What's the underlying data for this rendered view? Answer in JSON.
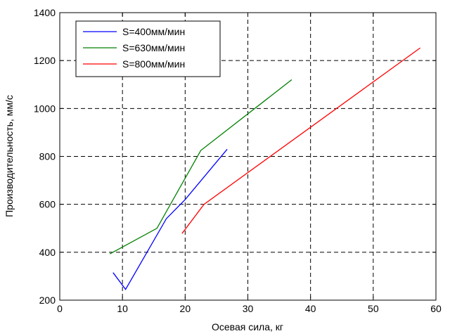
{
  "chart_data": {
    "type": "line",
    "xlabel": "Осевая сила, кг",
    "ylabel": "Производительность, мм/с",
    "xlim": [
      0,
      60
    ],
    "ylim": [
      200,
      1400
    ],
    "xticks": [
      0,
      10,
      20,
      30,
      40,
      50,
      60
    ],
    "yticks": [
      200,
      400,
      600,
      800,
      1000,
      1200,
      1400
    ],
    "grid": true,
    "legend_position": "top-left",
    "series": [
      {
        "name": "S=400мм/мин",
        "color": "#0000ff",
        "x": [
          8.5,
          10.5,
          17.0,
          20.0,
          26.7
        ],
        "y": [
          315,
          245,
          540,
          620,
          830
        ]
      },
      {
        "name": "S=630мм/мин",
        "color": "#008000",
        "x": [
          8.0,
          15.5,
          22.5,
          37.0
        ],
        "y": [
          393,
          500,
          825,
          1120
        ]
      },
      {
        "name": "S=800мм/мин",
        "color": "#ff0000",
        "x": [
          19.5,
          23.0,
          57.5
        ],
        "y": [
          478,
          600,
          1253
        ]
      }
    ]
  }
}
